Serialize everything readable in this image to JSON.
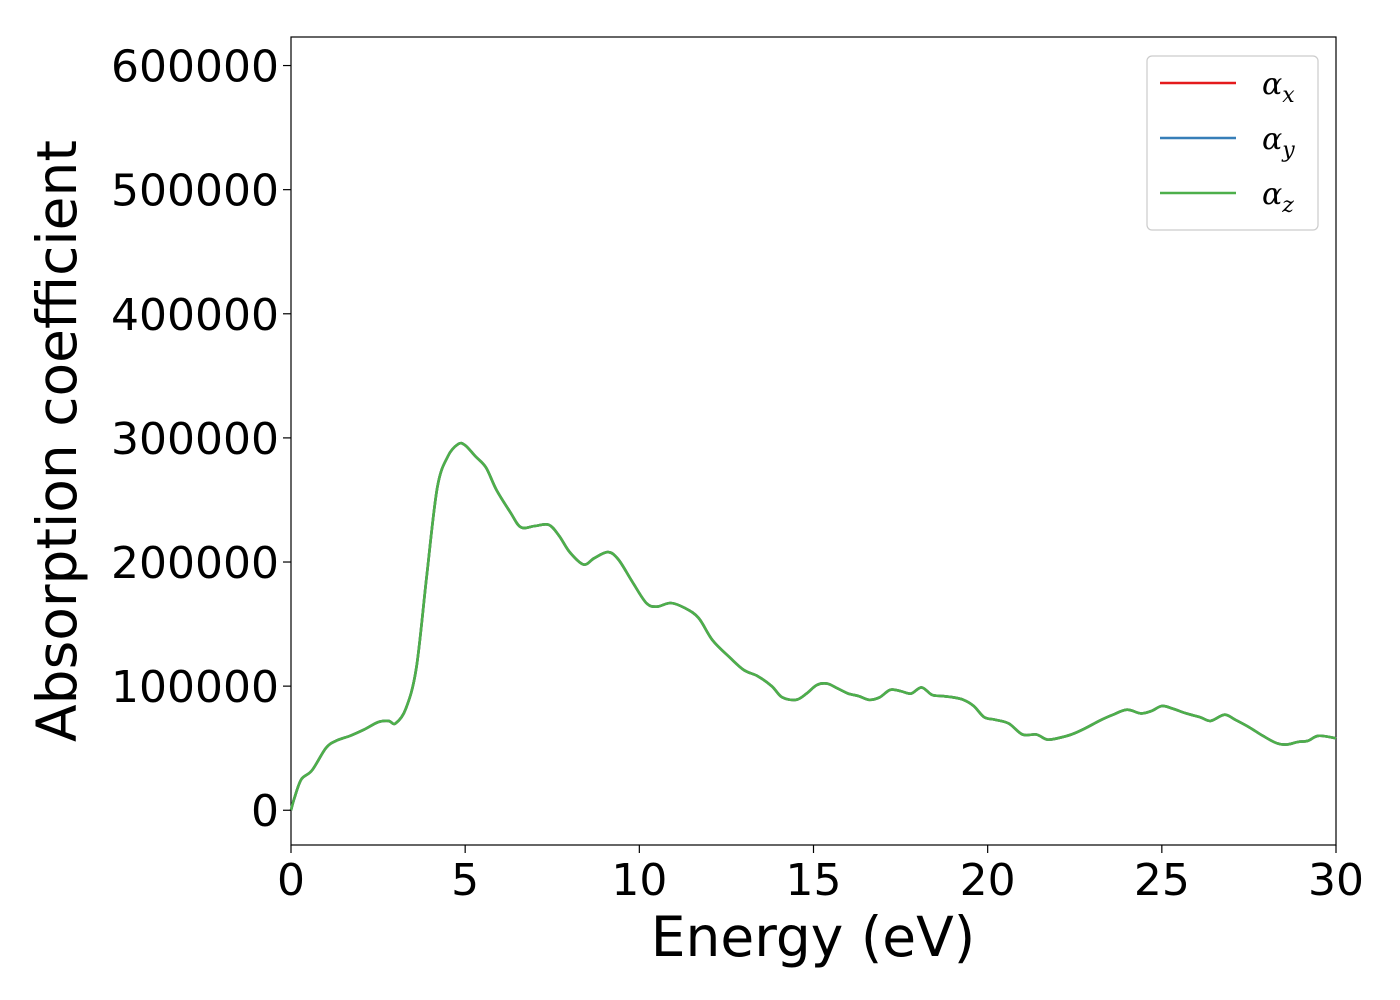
{
  "chart_data": {
    "type": "line",
    "xlabel": "Energy (eV)",
    "ylabel": "Absorption coefficient",
    "xlim": [
      0,
      30
    ],
    "ylim": [
      -28000,
      623000
    ],
    "xticks": [
      "0",
      "5",
      "10",
      "15",
      "20",
      "25",
      "30"
    ],
    "yticks": [
      "0",
      "100000",
      "200000",
      "300000",
      "400000",
      "500000",
      "600000"
    ],
    "grid": false,
    "legend_position": "top-right",
    "x": [
      0,
      0.1,
      0.3,
      0.6,
      1.0,
      1.3,
      1.7,
      2.1,
      2.5,
      2.8,
      3.0,
      3.3,
      3.6,
      3.9,
      4.2,
      4.5,
      4.8,
      5.0,
      5.3,
      5.6,
      5.9,
      6.3,
      6.6,
      7.0,
      7.4,
      7.7,
      8.0,
      8.4,
      8.7,
      9.1,
      9.4,
      9.8,
      10.2,
      10.5,
      10.9,
      11.3,
      11.7,
      12.1,
      12.6,
      13.0,
      13.4,
      13.8,
      14.1,
      14.5,
      14.8,
      15.1,
      15.4,
      15.7,
      16.0,
      16.3,
      16.6,
      16.9,
      17.2,
      17.5,
      17.8,
      18.1,
      18.4,
      18.7,
      19.0,
      19.3,
      19.6,
      19.9,
      20.2,
      20.6,
      21.0,
      21.4,
      21.7,
      22.0,
      22.4,
      22.8,
      23.2,
      23.6,
      24.0,
      24.4,
      24.7,
      25.0,
      25.3,
      25.7,
      26.1,
      26.4,
      26.8,
      27.1,
      27.5,
      27.9,
      28.3,
      28.6,
      28.9,
      29.2,
      29.5,
      30.0
    ],
    "series": [
      {
        "name": "α_x",
        "label_base": "α",
        "label_sub": "x",
        "color": "#e41a1c",
        "values": [
          0,
          10000,
          25000,
          32000,
          50000,
          56000,
          60000,
          65000,
          71000,
          72000,
          70000,
          82000,
          115000,
          190000,
          260000,
          285000,
          295000,
          294000,
          285000,
          276000,
          258000,
          240000,
          228000,
          229000,
          230000,
          221000,
          208000,
          198000,
          203000,
          208000,
          202000,
          184000,
          167000,
          164000,
          167000,
          163000,
          155000,
          137000,
          123000,
          113000,
          108000,
          100000,
          91000,
          89000,
          94000,
          101000,
          102000,
          98000,
          94000,
          92000,
          89000,
          91000,
          97000,
          96000,
          94000,
          99000,
          93000,
          92000,
          91000,
          89000,
          84000,
          75000,
          73000,
          70000,
          61000,
          61000,
          57000,
          58000,
          61000,
          66000,
          72000,
          77000,
          81000,
          78000,
          80000,
          84000,
          82000,
          78000,
          75000,
          72000,
          77000,
          73000,
          67000,
          60000,
          54000,
          53000,
          55000,
          56000,
          60000,
          58000
        ]
      },
      {
        "name": "α_y",
        "label_base": "α",
        "label_sub": "y",
        "color": "#377eb8",
        "values": [
          0,
          10000,
          25000,
          32000,
          50000,
          56000,
          60000,
          65000,
          71000,
          72000,
          70000,
          82000,
          115000,
          190000,
          260000,
          285000,
          295000,
          294000,
          285000,
          276000,
          258000,
          240000,
          228000,
          229000,
          230000,
          221000,
          208000,
          198000,
          203000,
          208000,
          202000,
          184000,
          167000,
          164000,
          167000,
          163000,
          155000,
          137000,
          123000,
          113000,
          108000,
          100000,
          91000,
          89000,
          94000,
          101000,
          102000,
          98000,
          94000,
          92000,
          89000,
          91000,
          97000,
          96000,
          94000,
          99000,
          93000,
          92000,
          91000,
          89000,
          84000,
          75000,
          73000,
          70000,
          61000,
          61000,
          57000,
          58000,
          61000,
          66000,
          72000,
          77000,
          81000,
          78000,
          80000,
          84000,
          82000,
          78000,
          75000,
          72000,
          77000,
          73000,
          67000,
          60000,
          54000,
          53000,
          55000,
          56000,
          60000,
          58000
        ]
      },
      {
        "name": "α_z",
        "label_base": "α",
        "label_sub": "z",
        "color": "#4daf4a",
        "values": [
          0,
          10000,
          25000,
          32000,
          50000,
          56000,
          60000,
          65000,
          71000,
          72000,
          70000,
          82000,
          115000,
          190000,
          260000,
          285000,
          295000,
          294000,
          285000,
          276000,
          258000,
          240000,
          228000,
          229000,
          230000,
          221000,
          208000,
          198000,
          203000,
          208000,
          202000,
          184000,
          167000,
          164000,
          167000,
          163000,
          155000,
          137000,
          123000,
          113000,
          108000,
          100000,
          91000,
          89000,
          94000,
          101000,
          102000,
          98000,
          94000,
          92000,
          89000,
          91000,
          97000,
          96000,
          94000,
          99000,
          93000,
          92000,
          91000,
          89000,
          84000,
          75000,
          73000,
          70000,
          61000,
          61000,
          57000,
          58000,
          61000,
          66000,
          72000,
          77000,
          81000,
          78000,
          80000,
          84000,
          82000,
          78000,
          75000,
          72000,
          77000,
          73000,
          67000,
          60000,
          54000,
          53000,
          55000,
          56000,
          60000,
          58000
        ]
      }
    ]
  }
}
